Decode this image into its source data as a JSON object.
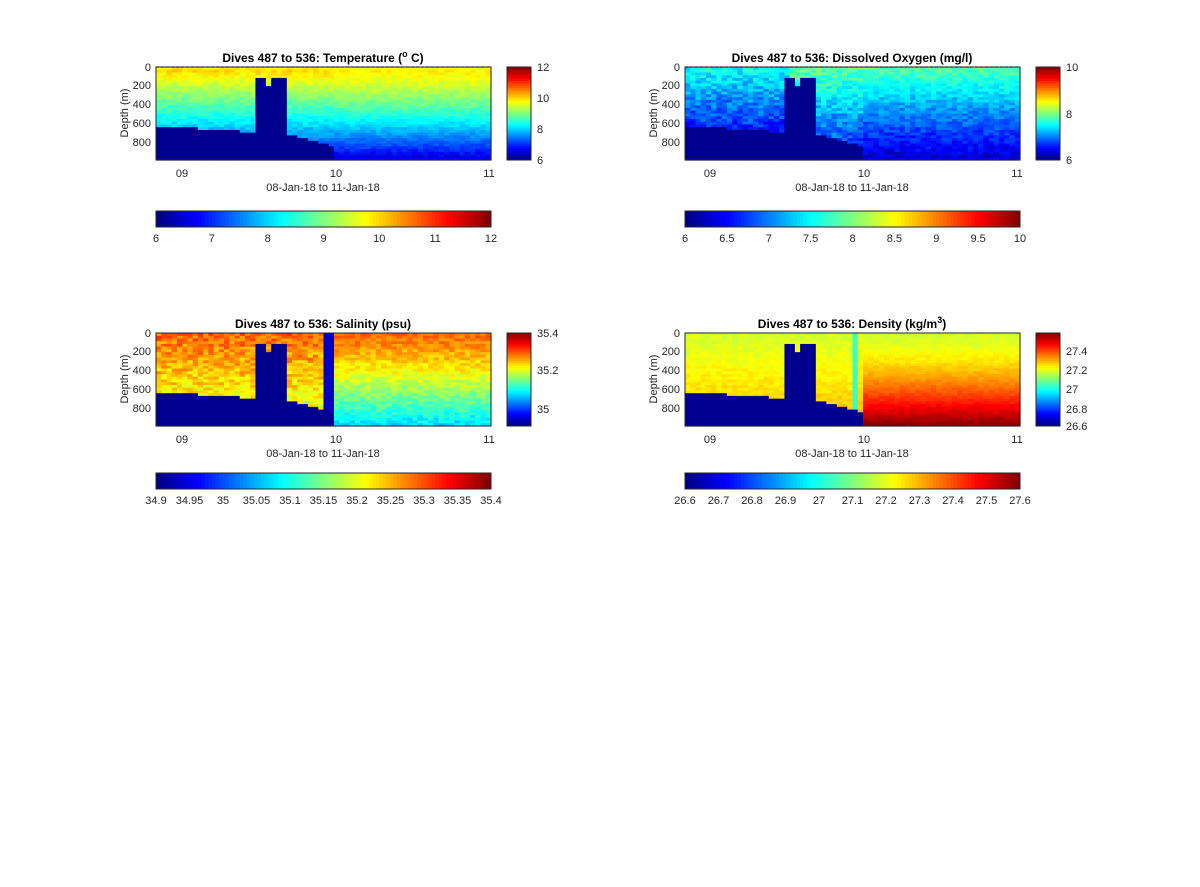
{
  "chart_data": [
    {
      "type": "heatmap",
      "title": "Dives 487 to 536: Temperature (° C)",
      "title_main": "Dives 487 to 536: Temperature (",
      "title_sup": "o",
      "title_end": " C)",
      "variable": "temperature",
      "xlabel": "08-Jan-18 to 11-Jan-18",
      "ylabel": "Depth (m)",
      "x_ticks": [
        "09",
        "10",
        "11"
      ],
      "y_ticks": [
        "0",
        "200",
        "400",
        "600",
        "800"
      ],
      "ylim": [
        960,
        0
      ],
      "clim": [
        6,
        12
      ],
      "side_cbar_ticks": [
        "6",
        "8",
        "10",
        "12"
      ],
      "bottom_cbar_ticks": [
        "6",
        "7",
        "8",
        "9",
        "10",
        "11",
        "12"
      ]
    },
    {
      "type": "heatmap",
      "title": "Dives 487 to 536: Dissolved Oxygen (mg/l)",
      "title_main": "Dives 487 to 536: Dissolved Oxygen (mg/l)",
      "title_sup": "",
      "title_end": "",
      "variable": "oxygen",
      "xlabel": "08-Jan-18 to 11-Jan-18",
      "ylabel": "Depth (m)",
      "x_ticks": [
        "09",
        "10",
        "11"
      ],
      "y_ticks": [
        "0",
        "200",
        "400",
        "600",
        "800"
      ],
      "ylim": [
        960,
        0
      ],
      "clim": [
        6,
        10
      ],
      "side_cbar_ticks": [
        "6",
        "8",
        "10"
      ],
      "bottom_cbar_ticks": [
        "6",
        "6.5",
        "7",
        "7.5",
        "8",
        "8.5",
        "9",
        "9.5",
        "10"
      ]
    },
    {
      "type": "heatmap",
      "title": "Dives 487 to 536: Salinity (psu)",
      "title_main": "Dives 487 to 536: Salinity (psu)",
      "title_sup": "",
      "title_end": "",
      "variable": "salinity",
      "xlabel": "08-Jan-18 to 11-Jan-18",
      "ylabel": "Depth (m)",
      "x_ticks": [
        "09",
        "10",
        "11"
      ],
      "y_ticks": [
        "0",
        "200",
        "400",
        "600",
        "800"
      ],
      "ylim": [
        960,
        0
      ],
      "clim": [
        34.95,
        35.4
      ],
      "side_cbar_ticks": [
        "35",
        "35.2",
        "35.4"
      ],
      "bottom_cbar_ticks": [
        "34.9",
        "34.95",
        "35",
        "35.05",
        "35.1",
        "35.15",
        "35.2",
        "35.25",
        "35.3",
        "35.35",
        "35.4"
      ]
    },
    {
      "type": "heatmap",
      "title": "Dives 487 to 536: Density (kg/m3)",
      "title_main": "Dives 487 to 536: Density (kg/m",
      "title_sup": "3",
      "title_end": ")",
      "variable": "density",
      "xlabel": "08-Jan-18 to 11-Jan-18",
      "ylabel": "Depth (m)",
      "x_ticks": [
        "09",
        "10",
        "11"
      ],
      "y_ticks": [
        "0",
        "200",
        "400",
        "600",
        "800"
      ],
      "ylim": [
        960,
        0
      ],
      "clim": [
        26.6,
        27.6
      ],
      "side_cbar_ticks": [
        "26.6",
        "26.8",
        "27",
        "27.2",
        "27.4"
      ],
      "bottom_cbar_ticks": [
        "26.6",
        "26.7",
        "26.8",
        "26.9",
        "27",
        "27.1",
        "27.2",
        "27.3",
        "27.4",
        "27.5",
        "27.6"
      ]
    }
  ],
  "colors": {
    "mask": "#00008f",
    "colormap": "jet"
  }
}
